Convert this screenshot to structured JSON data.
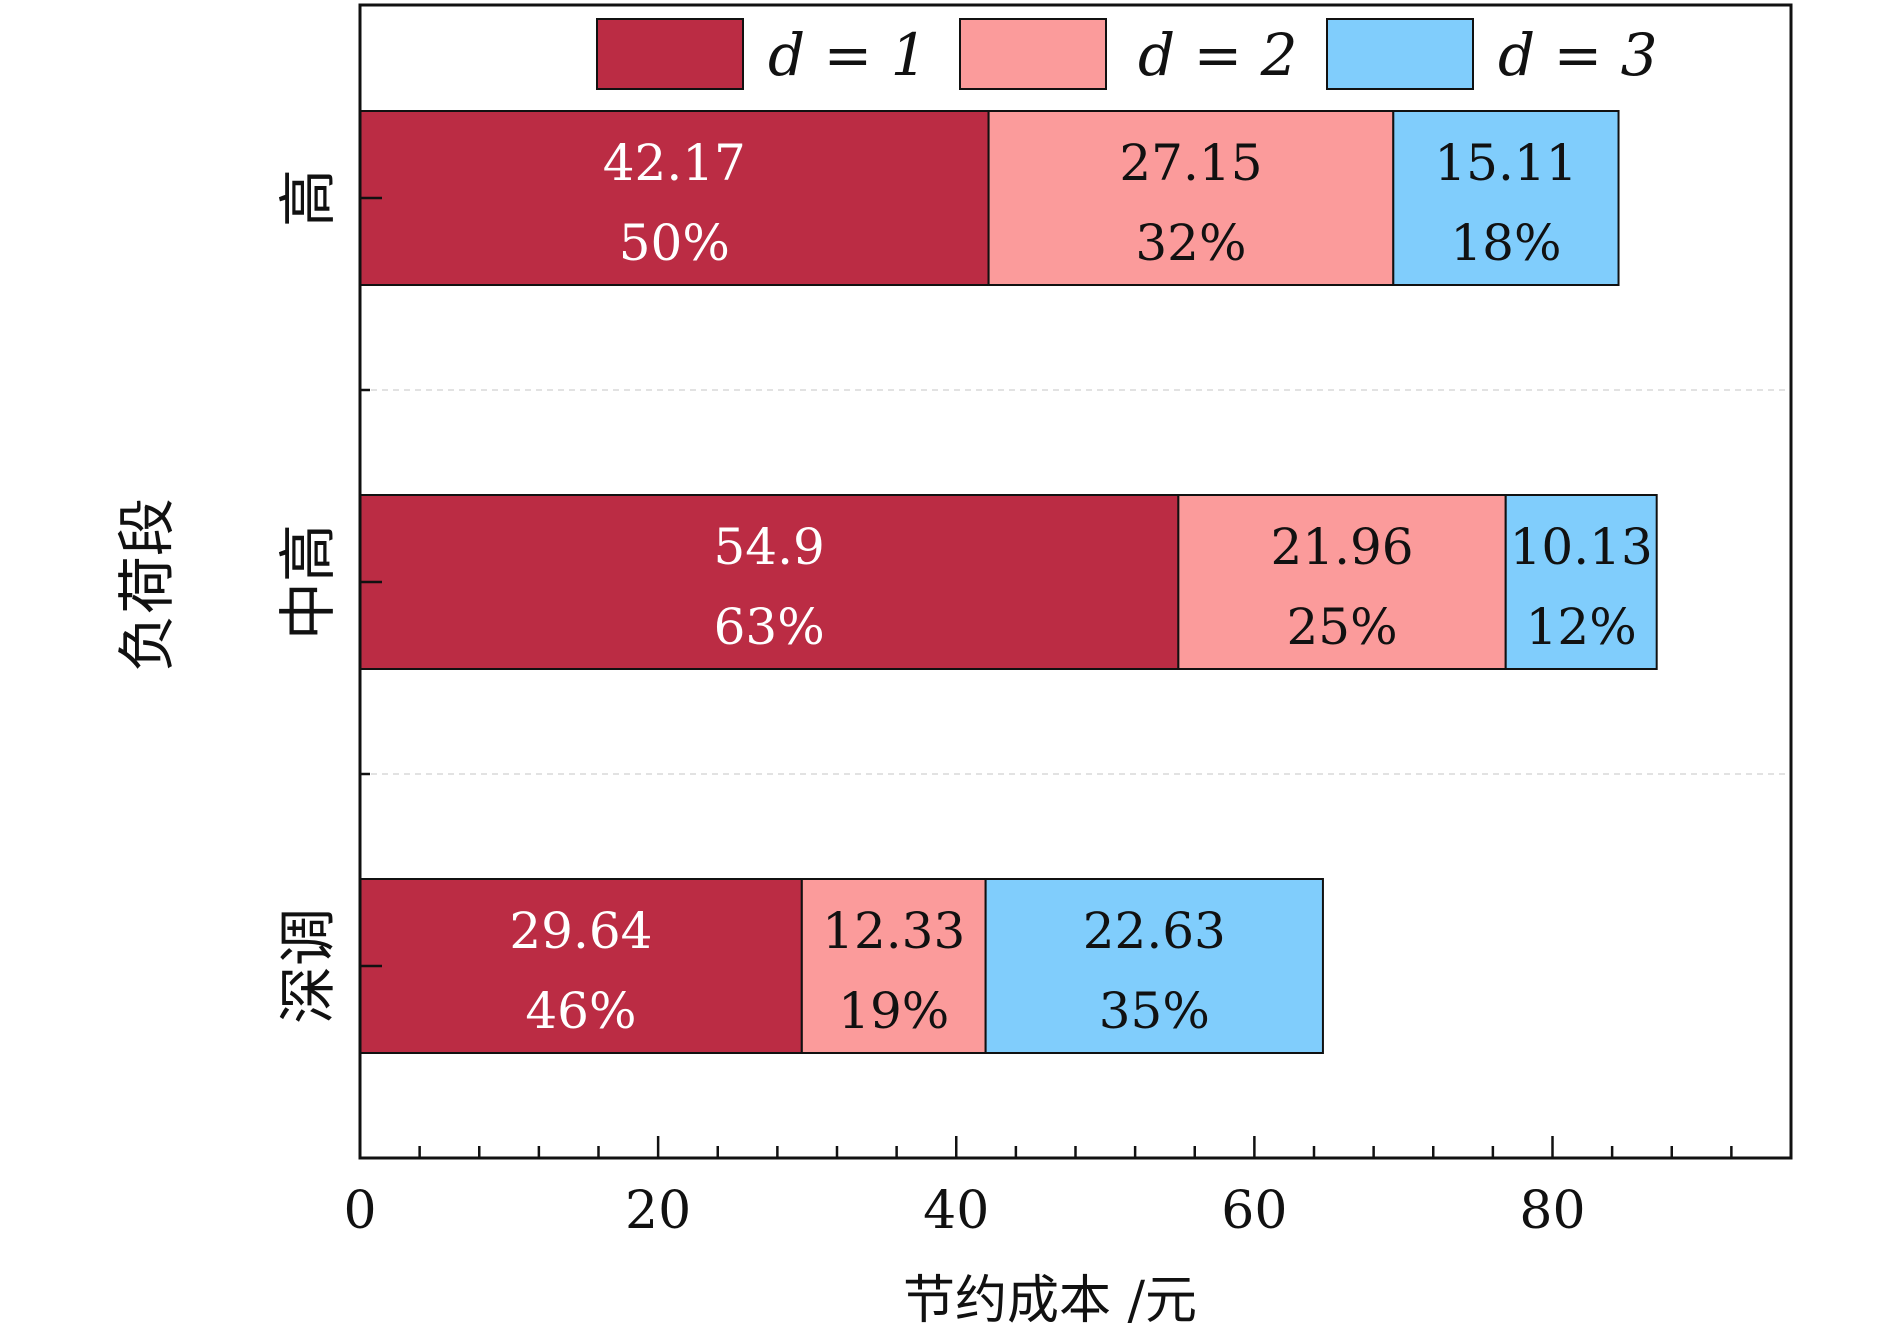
{
  "chart_data": {
    "type": "bar",
    "orientation": "horizontal",
    "stacked": true,
    "categories": [
      "高",
      "中高",
      "深调"
    ],
    "series": [
      {
        "name": "d = 1",
        "color": "#bb2c44",
        "label_color": "#ffffff",
        "values": [
          42.17,
          54.9,
          29.64
        ],
        "value_labels": [
          "42.17",
          "54.9",
          "29.64"
        ],
        "percents": [
          "50%",
          "63%",
          "46%"
        ]
      },
      {
        "name": "d = 2",
        "color": "#fb9b9b",
        "label_color": "#111111",
        "values": [
          27.15,
          21.96,
          12.33
        ],
        "value_labels": [
          "27.15",
          "21.96",
          "12.33"
        ],
        "percents": [
          "32%",
          "25%",
          "19%"
        ]
      },
      {
        "name": "d = 3",
        "color": "#80cdfc",
        "label_color": "#111111",
        "values": [
          15.11,
          10.13,
          22.63
        ],
        "value_labels": [
          "15.11",
          "10.13",
          "22.63"
        ],
        "percents": [
          "18%",
          "12%",
          "35%"
        ]
      }
    ],
    "xlabel": "节约成本 /元",
    "ylabel": "负荷段",
    "xlim": [
      0,
      96
    ],
    "xticks": [
      0,
      20,
      40,
      60,
      80
    ],
    "xtick_labels": [
      "0",
      "20",
      "40",
      "60",
      "80"
    ],
    "grid": "horizontal dashed separators between categories",
    "legend_position": "top"
  }
}
